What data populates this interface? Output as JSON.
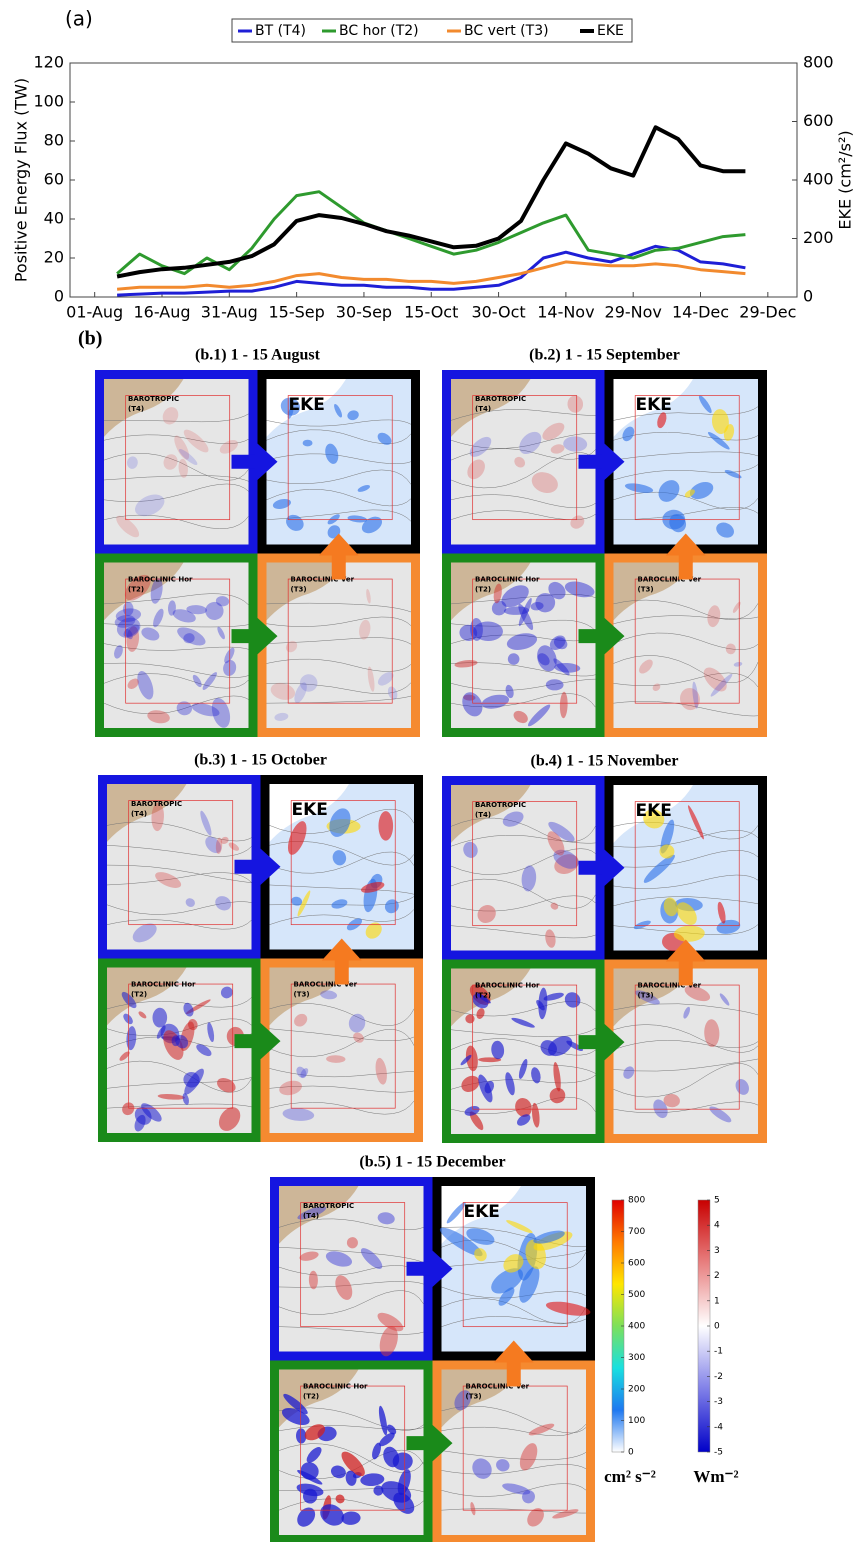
{
  "chart_data": [
    {
      "type": "line",
      "panel_label": "(a)",
      "y_label": "Positive Energy Flux (TW)",
      "y2_label": "EKE (cm²/s²)",
      "x": [
        5,
        10,
        15,
        20,
        25,
        30,
        35,
        40,
        45,
        50,
        55,
        60,
        65,
        70,
        75,
        80,
        85,
        90,
        95,
        100,
        105,
        110,
        115,
        120,
        125,
        130,
        135,
        140,
        145
      ],
      "xlim": [
        -5.5,
        156.5
      ],
      "xticks": [
        {
          "value": 0,
          "label": "01-Aug"
        },
        {
          "value": 15,
          "label": "16-Aug"
        },
        {
          "value": 30,
          "label": "31-Aug"
        },
        {
          "value": 45,
          "label": "15-Sep"
        },
        {
          "value": 60,
          "label": "30-Sep"
        },
        {
          "value": 75,
          "label": "15-Oct"
        },
        {
          "value": 90,
          "label": "30-Oct"
        },
        {
          "value": 105,
          "label": "14-Nov"
        },
        {
          "value": 120,
          "label": "29-Nov"
        },
        {
          "value": 135,
          "label": "14-Dec"
        },
        {
          "value": 150,
          "label": "29-Dec"
        }
      ],
      "ylim": [
        0,
        120
      ],
      "yticks": [
        0,
        20,
        40,
        60,
        80,
        100,
        120
      ],
      "y2lim": [
        0,
        800
      ],
      "y2ticks": [
        0,
        200,
        400,
        600,
        800
      ],
      "legend": "top",
      "series": [
        {
          "name": "BT (T4)",
          "color": "#1f1fd6",
          "values": [
            1,
            1.5,
            2,
            2,
            2.5,
            3,
            3,
            5,
            8,
            7,
            6,
            6,
            5,
            5,
            4,
            4,
            5,
            6,
            10,
            20,
            23,
            20,
            18,
            22,
            26,
            24,
            18,
            17,
            15
          ]
        },
        {
          "name": "BC hor (T2)",
          "color": "#2e9a2e",
          "values": [
            12,
            22,
            16,
            12,
            20,
            14,
            25,
            40,
            52,
            54,
            46,
            38,
            34,
            30,
            26,
            22,
            24,
            28,
            33,
            38,
            42,
            24,
            22,
            20,
            24,
            25,
            28,
            31,
            32
          ]
        },
        {
          "name": "BC vert (T3)",
          "color": "#f28a2e",
          "values": [
            4,
            5,
            5,
            5,
            6,
            5,
            6,
            8,
            11,
            12,
            10,
            9,
            9,
            8,
            8,
            7,
            8,
            10,
            12,
            15,
            18,
            17,
            16,
            16,
            17,
            16,
            14,
            13,
            12
          ]
        },
        {
          "name": "EKE",
          "color": "#000000",
          "axis": "y2",
          "values": [
            70,
            85,
            95,
            100,
            110,
            120,
            140,
            180,
            260,
            280,
            270,
            250,
            225,
            210,
            190,
            170,
            175,
            200,
            260,
            400,
            525,
            490,
            440,
            415,
            580,
            540,
            450,
            430,
            430
          ]
        }
      ]
    },
    {
      "type": "colorbar",
      "ylim": [
        0,
        800
      ],
      "yticks": [
        0,
        100,
        200,
        300,
        400,
        500,
        600,
        700,
        800
      ],
      "colors": [
        "#ffffff",
        "#1e78f0",
        "#19e0e0",
        "#7de05a",
        "#ffe600",
        "#ff7a00",
        "#e00000"
      ],
      "label": "cm² s⁻²"
    },
    {
      "type": "colorbar",
      "ylim": [
        -5,
        5
      ],
      "yticks": [
        -5,
        -4,
        -3,
        -2,
        -1,
        0,
        1,
        2,
        3,
        4,
        5
      ],
      "colors": [
        "#0000c8",
        "#8080e8",
        "#ffffff",
        "#e88080",
        "#c80000"
      ],
      "label": "Wm⁻²"
    }
  ],
  "figure_b": {
    "label": "(b)",
    "panels": [
      {
        "title": "(b.1) 1 - 15 August",
        "bt": [
          "BAROTROPIC",
          "(T4)"
        ],
        "eke": "EKE",
        "hor": [
          "BAROCLINIC Hor",
          "(T2)"
        ],
        "ver": [
          "BAROCLINIC Ver",
          "(T3)"
        ]
      },
      {
        "title": "(b.2) 1 - 15 September",
        "bt": [
          "BAROTROPIC",
          "(T4)"
        ],
        "eke": "EKE",
        "hor": [
          "BAROCLINIC Hor",
          "(T2)"
        ],
        "ver": [
          "BAROCLINIC Ver",
          "(T3)"
        ]
      },
      {
        "title": "(b.3) 1 - 15 October",
        "bt": [
          "BAROTROPIC",
          "(T4)"
        ],
        "eke": "EKE",
        "hor": [
          "BAROCLINIC Hor",
          "(T2)"
        ],
        "ver": [
          "BAROCLINIC Ver",
          "(T3)"
        ]
      },
      {
        "title": "(b.4) 1 - 15 November",
        "bt": [
          "BAROTROPIC",
          "(T4)"
        ],
        "eke": "EKE",
        "hor": [
          "BAROCLINIC Hor",
          "(T2)"
        ],
        "ver": [
          "BAROCLINIC Ver",
          "(T3)"
        ]
      },
      {
        "title": "(b.5) 1 - 15 December",
        "bt": [
          "BAROTROPIC",
          "(T4)"
        ],
        "eke": "EKE",
        "hor": [
          "BAROCLINIC Hor",
          "(T2)"
        ],
        "ver": [
          "BAROCLINIC Ver",
          "(T3)"
        ]
      }
    ]
  }
}
